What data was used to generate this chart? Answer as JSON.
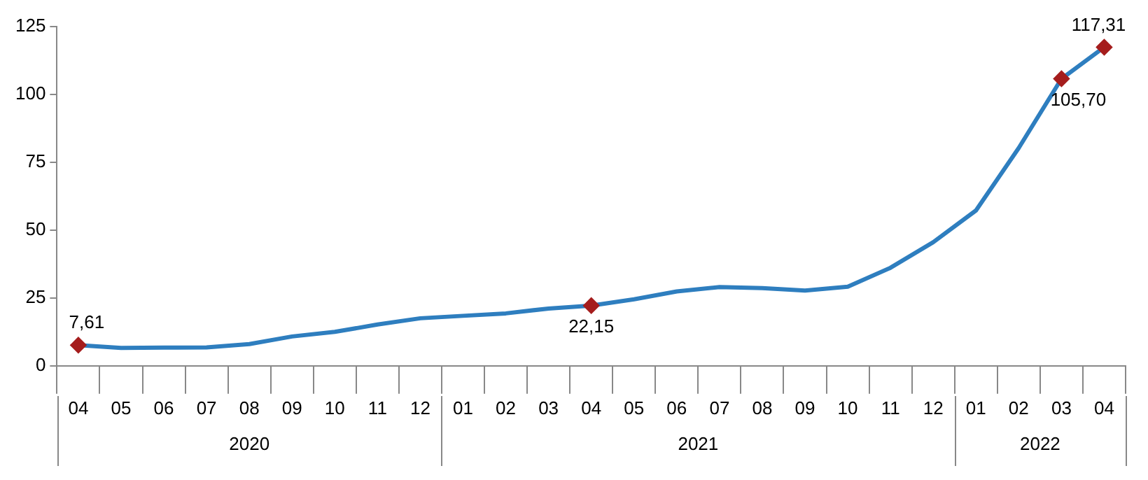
{
  "chart_data": {
    "type": "line",
    "categories": [
      "04",
      "05",
      "06",
      "07",
      "08",
      "09",
      "10",
      "11",
      "12",
      "01",
      "02",
      "03",
      "04",
      "05",
      "06",
      "07",
      "08",
      "09",
      "10",
      "11",
      "12",
      "01",
      "02",
      "03",
      "04"
    ],
    "series": [
      {
        "color": "#2e7ebf",
        "values": [
          7.61,
          6.6,
          6.7,
          6.8,
          8.0,
          10.8,
          12.5,
          15.2,
          17.5,
          18.4,
          19.3,
          21.1,
          22.15,
          24.5,
          27.4,
          29.0,
          28.6,
          27.7,
          29.1,
          36.1,
          45.5,
          57.2,
          80.2,
          105.7,
          117.31
        ],
        "value_labels": [
          "7,61",
          null,
          null,
          null,
          null,
          null,
          null,
          null,
          null,
          null,
          null,
          null,
          "22,15",
          null,
          null,
          null,
          null,
          null,
          null,
          null,
          null,
          null,
          null,
          "105,70",
          "117,31"
        ]
      }
    ],
    "annotations": [
      "2020",
      "2021",
      "2022"
    ],
    "ylim": [
      0,
      125
    ],
    "yticks": [
      0,
      25,
      50,
      75,
      100,
      125
    ],
    "grid": false,
    "legend": false,
    "line_style": "solid"
  }
}
